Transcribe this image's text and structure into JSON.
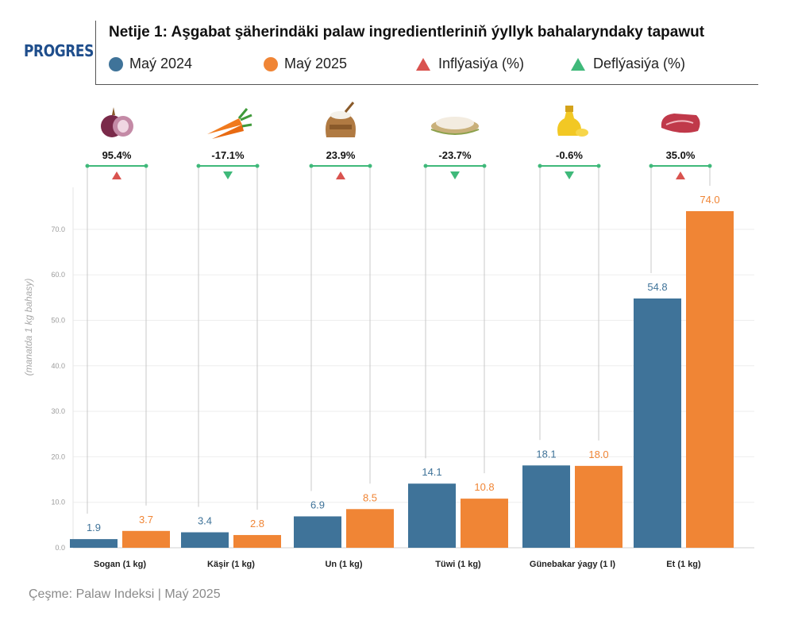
{
  "brand": {
    "logo_text": "PROGRES"
  },
  "legend": {
    "series1": "Maý 2024",
    "series2": "Maý 2025",
    "inflation": "Inflýasiýa (%)",
    "deflation": "Deflýasiýa (%)"
  },
  "colors": {
    "series1": "#3f7399",
    "series2": "#f08535",
    "inflation": "#d9534f",
    "deflation": "#3fb97a",
    "guide": "#c8c8c8"
  },
  "source": "Çeşme: Palaw Indeksi | Maý 2025",
  "chart_data": {
    "type": "bar",
    "title": "Netije 1: Aşgabat şäherindäki palaw ingredientleriniň ýyllyk bahalaryndaky tapawut",
    "ylabel": "(manatda 1 kg bahasy)",
    "ylim": [
      0,
      75
    ],
    "yticks": [
      "0.0",
      "10.0",
      "20.0",
      "30.0",
      "40.0",
      "50.0",
      "60.0",
      "70.0"
    ],
    "grid": true,
    "legend_position": "top",
    "categories": [
      "Sogan (1 kg)",
      "Käşir (1 kg)",
      "Un (1 kg)",
      "Tüwi (1 kg)",
      "Günebakar ýagy (1 l)",
      "Et (1 kg)"
    ],
    "series": [
      {
        "name": "Maý 2024",
        "values": [
          1.9,
          3.4,
          6.9,
          14.1,
          18.1,
          54.8
        ],
        "labels": [
          "1.9",
          "3.4",
          "6.9",
          "14.1",
          "18.1",
          "54.8"
        ]
      },
      {
        "name": "Maý 2025",
        "values": [
          3.7,
          2.8,
          8.5,
          10.8,
          18.0,
          74.0
        ],
        "labels": [
          "3.7",
          "2.8",
          "8.5",
          "10.8",
          "18.0",
          "74.0"
        ]
      }
    ],
    "change_pct": [
      "95.4%",
      "-17.1%",
      "23.9%",
      "-23.7%",
      "-0.6%",
      "35.0%"
    ],
    "change_dir": [
      "up",
      "down",
      "up",
      "down",
      "down",
      "up"
    ],
    "icons": [
      "onion-icon",
      "carrot-icon",
      "flour-sack-icon",
      "rice-bowl-icon",
      "oil-bottle-icon",
      "meat-icon"
    ]
  }
}
